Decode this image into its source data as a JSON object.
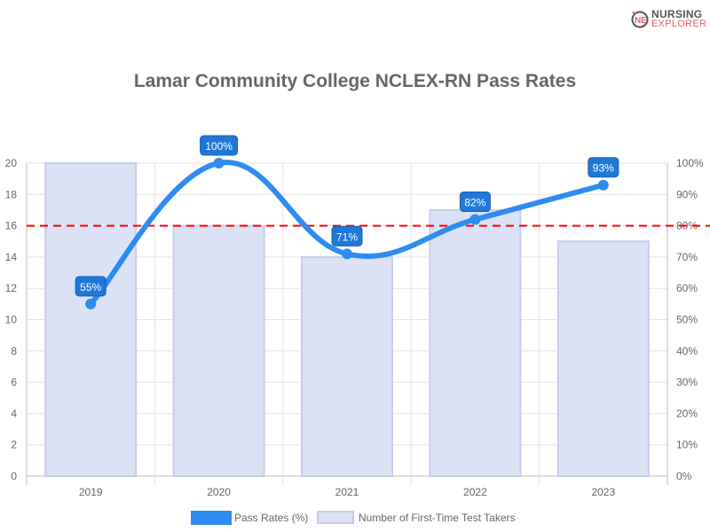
{
  "logo": {
    "line1": "NURSING",
    "line2": "EXPLORER"
  },
  "chart_data": {
    "type": "bar+line",
    "title": "Lamar Community College NCLEX-RN Pass Rates",
    "categories": [
      "2019",
      "2020",
      "2021",
      "2022",
      "2023"
    ],
    "series": [
      {
        "name": "Pass Rates (%)",
        "type": "line",
        "axis": "right",
        "values": [
          55,
          100,
          71,
          82,
          93
        ],
        "labels": [
          "55%",
          "100%",
          "71%",
          "82%",
          "93%"
        ],
        "color": "#2e8cf0"
      },
      {
        "name": "Number of First-Time Test Takers",
        "type": "bar",
        "axis": "left",
        "values": [
          20,
          16,
          14,
          17,
          15
        ],
        "color": "#dbe2f6"
      }
    ],
    "left_axis": {
      "range": [
        0,
        20
      ],
      "ticks": [
        "0",
        "2",
        "4",
        "6",
        "8",
        "10",
        "12",
        "14",
        "16",
        "18",
        "20"
      ]
    },
    "right_axis": {
      "range": [
        0,
        100
      ],
      "ticks": [
        "0%",
        "10%",
        "20%",
        "30%",
        "40%",
        "50%",
        "60%",
        "70%",
        "80%",
        "90%",
        "100%"
      ]
    },
    "reference_line": {
      "value_right_axis": 80,
      "color": "#ff0000",
      "style": "dashed"
    },
    "grid": true,
    "legend": "bottom"
  }
}
